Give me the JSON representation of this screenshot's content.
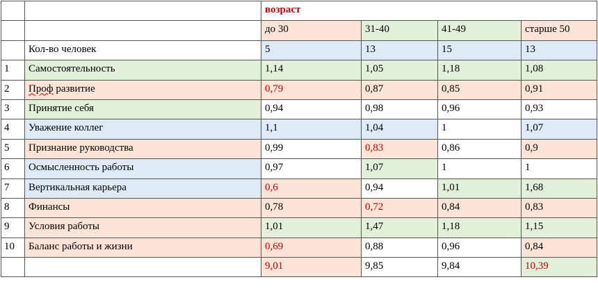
{
  "colors": {
    "green": "#e2efd9",
    "pink": "#fbe4d5",
    "blue": "#deeaf6",
    "white": "#ffffff",
    "red_text": "#c00000"
  },
  "header": {
    "group_label": "возраст",
    "columns": [
      "до 30",
      "31-40",
      "41-49",
      "старше 50"
    ]
  },
  "count_row": {
    "label": "Кол-во человек",
    "values": [
      "5",
      "13",
      "15",
      "13"
    ]
  },
  "rows": [
    {
      "num": "1",
      "label": "Самостоятельность",
      "values": [
        "1,14",
        "1,05",
        "1,18",
        "1,08"
      ],
      "red": [
        false,
        false,
        false,
        false
      ]
    },
    {
      "num": "2",
      "label": "Проф развитие",
      "values": [
        "0,79",
        "0,87",
        "0,85",
        "0,91"
      ],
      "red": [
        true,
        false,
        false,
        false
      ]
    },
    {
      "num": "3",
      "label": "Принятие себя",
      "values": [
        "0,94",
        "0,98",
        "0,96",
        "0,93"
      ],
      "red": [
        false,
        false,
        false,
        false
      ]
    },
    {
      "num": "4",
      "label": "Уважение коллег",
      "values": [
        "1,1",
        "1,04",
        "1",
        "1,07"
      ],
      "red": [
        false,
        false,
        false,
        false
      ]
    },
    {
      "num": "5",
      "label": "Признание руководства",
      "values": [
        "0,99",
        "0,83",
        "0,86",
        "0,9"
      ],
      "red": [
        false,
        true,
        false,
        false
      ]
    },
    {
      "num": "6",
      "label": "Осмысленность работы",
      "values": [
        "0,97",
        "1,07",
        "1",
        "1"
      ],
      "red": [
        false,
        false,
        false,
        false
      ]
    },
    {
      "num": "7",
      "label": "Вертикальная карьера",
      "values": [
        "0,6",
        "0,94",
        "1,01",
        "1,68"
      ],
      "red": [
        true,
        false,
        false,
        false
      ]
    },
    {
      "num": "8",
      "label": "Финансы",
      "values": [
        "0,78",
        "0,72",
        "0,84",
        "0,83"
      ],
      "red": [
        false,
        true,
        false,
        false
      ]
    },
    {
      "num": "9",
      "label": "Условия работы",
      "values": [
        "1,01",
        "1,47",
        "1,18",
        "1,15"
      ],
      "red": [
        false,
        false,
        false,
        false
      ]
    },
    {
      "num": "10",
      "label": "Баланс работы и жизни",
      "values": [
        "0,69",
        "0,88",
        "0,96",
        "0,84"
      ],
      "red": [
        true,
        false,
        false,
        false
      ]
    }
  ],
  "total_row": {
    "values": [
      "9,01",
      "9,85",
      "9,84",
      "10,39"
    ],
    "red": [
      true,
      false,
      false,
      true
    ]
  }
}
